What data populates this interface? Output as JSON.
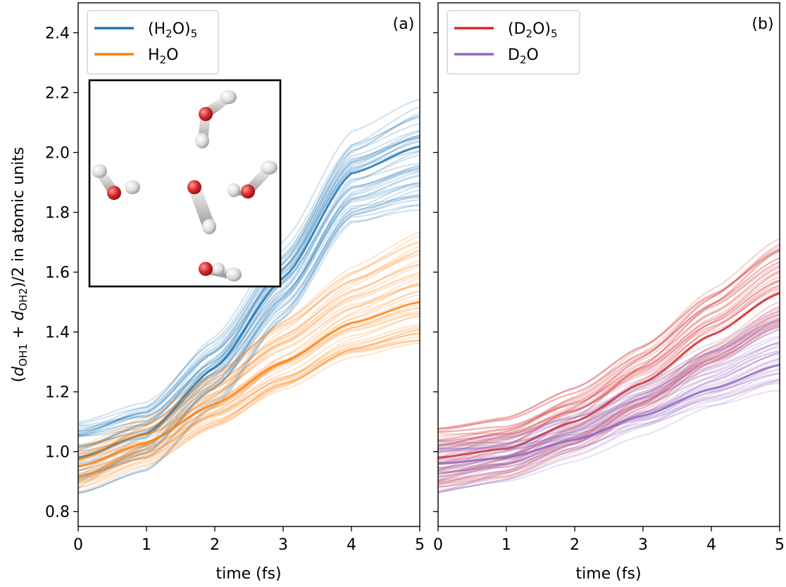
{
  "ylabel": "(dOH1 + dOH2)/2 in atomic units",
  "xlabel": "time (fs)",
  "colors": {
    "h2o5": "#1f77b4",
    "h2o": "#ff7f0e",
    "d2o5": "#d62728",
    "d2o": "#9467bd"
  },
  "chart_data": [
    {
      "type": "line",
      "panel_label": "(a)",
      "xlabel": "time (fs)",
      "ylabel": "(dOH1 + dOH2)/2 in atomic units",
      "xlim": [
        0,
        5
      ],
      "ylim": [
        0.75,
        2.5
      ],
      "xticks": [
        "0",
        "1",
        "2",
        "3",
        "4",
        "5"
      ],
      "yticks": [
        "0.8",
        "1.0",
        "1.2",
        "1.4",
        "1.6",
        "1.8",
        "2.0",
        "2.2",
        "2.4"
      ],
      "legend_position": "top-left",
      "x": [
        0,
        1,
        2,
        3,
        4,
        5
      ],
      "series": [
        {
          "name": "(H2O)5",
          "color": "#1f77b4",
          "values": [
            0.98,
            1.06,
            1.28,
            1.58,
            1.93,
            2.02
          ],
          "trajectory_spread": [
            0.86,
            1.1
          ],
          "final_spread": [
            1.77,
            2.18
          ]
        },
        {
          "name": "H2O",
          "color": "#ff7f0e",
          "values": [
            0.95,
            1.03,
            1.16,
            1.3,
            1.43,
            1.5
          ],
          "trajectory_spread": [
            0.86,
            1.02
          ],
          "final_spread": [
            1.36,
            1.74
          ]
        }
      ],
      "inset": "(H2O)5 cluster molecular structure"
    },
    {
      "type": "line",
      "panel_label": "(b)",
      "xlabel": "time (fs)",
      "xlim": [
        0,
        5
      ],
      "ylim": [
        0.75,
        2.5
      ],
      "xticks": [
        "0",
        "1",
        "2",
        "3",
        "4",
        "5"
      ],
      "legend_position": "top-left",
      "x": [
        0,
        1,
        2,
        3,
        4,
        5
      ],
      "series": [
        {
          "name": "(D2O)5",
          "color": "#d62728",
          "values": [
            0.98,
            1.01,
            1.1,
            1.23,
            1.39,
            1.53
          ],
          "trajectory_spread": [
            0.88,
            1.08
          ],
          "final_spread": [
            1.41,
            1.74
          ]
        },
        {
          "name": "D2O",
          "color": "#9467bd",
          "values": [
            0.96,
            0.98,
            1.04,
            1.12,
            1.21,
            1.29
          ],
          "trajectory_spread": [
            0.86,
            1.04
          ],
          "final_spread": [
            1.2,
            1.48
          ]
        }
      ]
    }
  ]
}
